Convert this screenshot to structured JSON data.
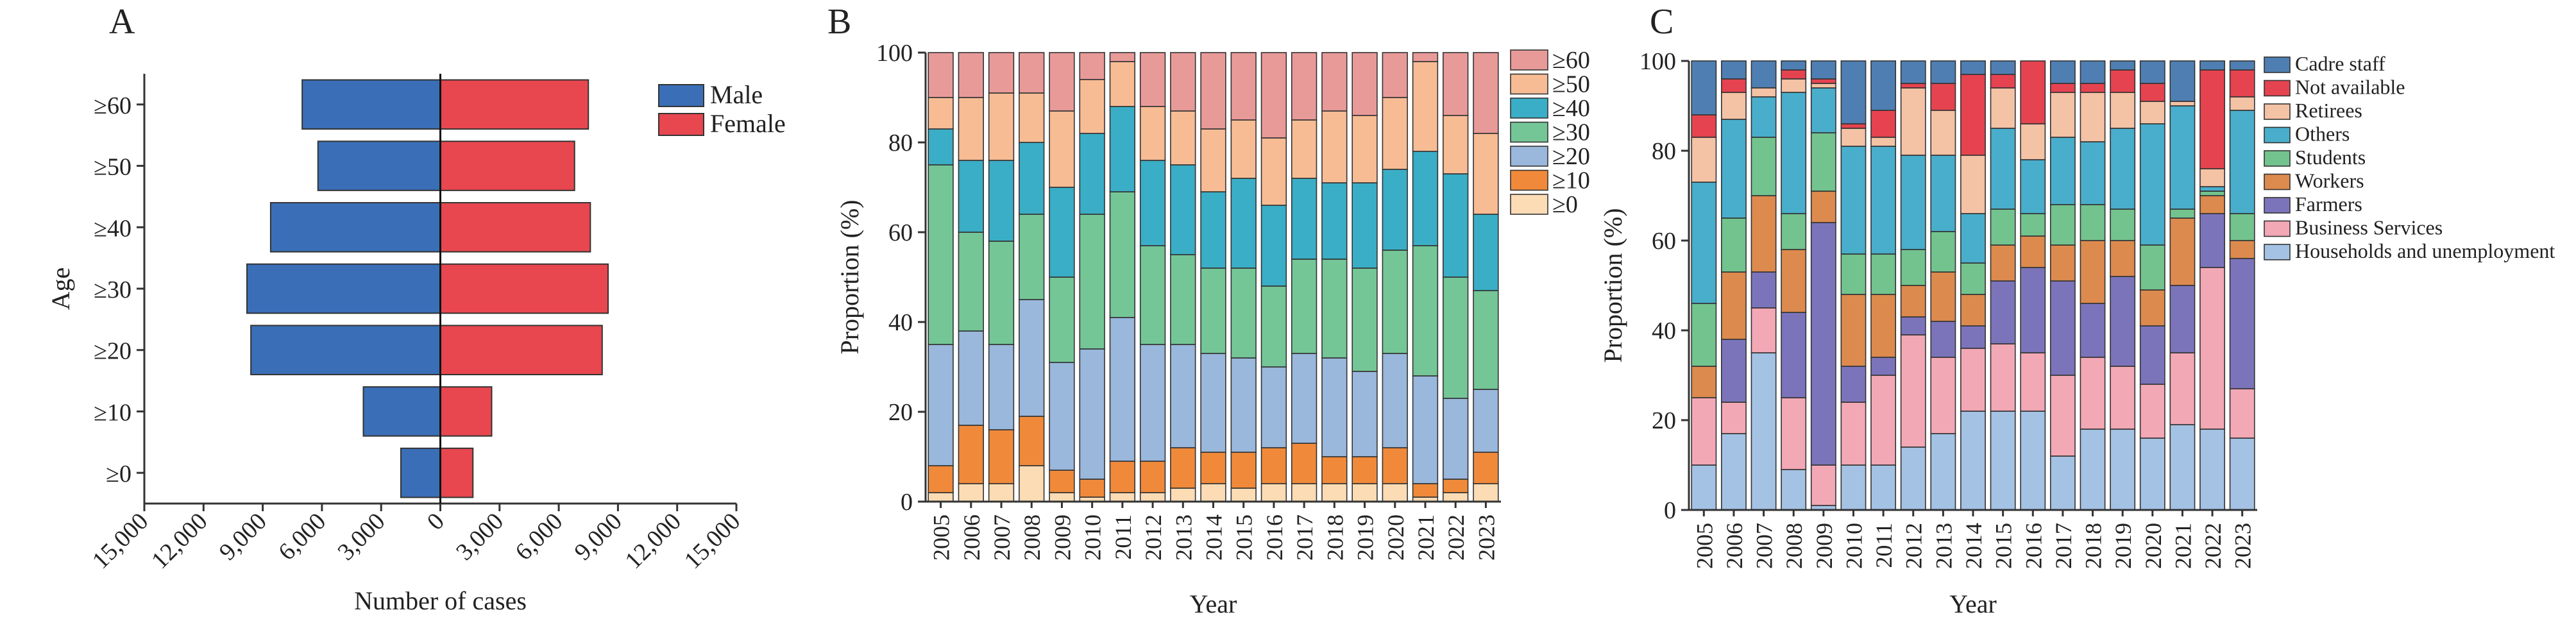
{
  "panels": [
    {
      "letter": "A",
      "chart_data": {
        "type": "bar",
        "orientation": "horizontal-pyramid",
        "categories": [
          "≥0",
          "≥10",
          "≥20",
          "≥30",
          "≥40",
          "≥50",
          "≥60"
        ],
        "series": [
          {
            "name": "Male",
            "values": [
              2000,
              3900,
              9600,
              9800,
              8600,
              6200,
              7000
            ],
            "color": "#3a6fb7"
          },
          {
            "name": "Female",
            "values": [
              1650,
              2600,
              8200,
              8500,
              7600,
              6800,
              7500
            ],
            "color": "#e8474f"
          }
        ],
        "xlabel": "Number of cases",
        "ylabel": "Age",
        "xlim": [
          -15000,
          15000
        ],
        "xticks": [
          -15000,
          -12000,
          -9000,
          -6000,
          -3000,
          0,
          3000,
          6000,
          9000,
          12000,
          15000
        ],
        "xtick_labels": [
          "15,000",
          "12,000",
          "9,000",
          "6,000",
          "3,000",
          "0",
          "3,000",
          "6,000",
          "9,000",
          "12,000",
          "15,000"
        ],
        "grid": false,
        "legend": "top-right"
      }
    },
    {
      "letter": "B",
      "chart_data": {
        "type": "bar",
        "stacked": true,
        "categories": [
          "2005",
          "2006",
          "2007",
          "2008",
          "2009",
          "2010",
          "2011",
          "2012",
          "2013",
          "2014",
          "2015",
          "2016",
          "2017",
          "2018",
          "2019",
          "2020",
          "2021",
          "2022",
          "2023"
        ],
        "series": [
          {
            "name": "≥0",
            "color": "#fbdcb5",
            "values": [
              2,
              4,
              4,
              8,
              2,
              1,
              2,
              2,
              3,
              4,
              3,
              4,
              4,
              4,
              4,
              4,
              1,
              2,
              4
            ]
          },
          {
            "name": "≥10",
            "color": "#f08a3a",
            "values": [
              6,
              13,
              12,
              11,
              5,
              4,
              7,
              7,
              9,
              7,
              8,
              8,
              9,
              6,
              6,
              8,
              3,
              3,
              7
            ]
          },
          {
            "name": "≥20",
            "color": "#9ab7dc",
            "values": [
              27,
              21,
              19,
              26,
              24,
              29,
              32,
              26,
              23,
              22,
              21,
              18,
              20,
              22,
              19,
              21,
              24,
              18,
              14
            ]
          },
          {
            "name": "≥30",
            "color": "#74c697",
            "values": [
              40,
              22,
              23,
              19,
              19,
              30,
              28,
              22,
              20,
              19,
              20,
              18,
              21,
              22,
              23,
              23,
              29,
              27,
              22
            ]
          },
          {
            "name": "≥40",
            "color": "#3aaec6",
            "values": [
              8,
              16,
              18,
              16,
              20,
              18,
              19,
              19,
              20,
              17,
              20,
              18,
              18,
              17,
              19,
              18,
              21,
              23,
              17
            ]
          },
          {
            "name": "≥50",
            "color": "#f7bc94",
            "values": [
              7,
              14,
              15,
              11,
              17,
              12,
              10,
              12,
              12,
              14,
              13,
              15,
              13,
              16,
              15,
              16,
              20,
              13,
              18
            ]
          },
          {
            "name": "≥60",
            "color": "#e89a99",
            "values": [
              10,
              10,
              9,
              9,
              13,
              6,
              2,
              12,
              13,
              17,
              15,
              19,
              15,
              13,
              14,
              10,
              2,
              14,
              18
            ]
          }
        ],
        "xlabel": "Year",
        "ylabel": "Proportion (%)",
        "ylim": [
          0,
          100
        ],
        "yticks": [
          0,
          20,
          40,
          60,
          80,
          100
        ],
        "grid": false,
        "legend": "right"
      }
    },
    {
      "letter": "C",
      "chart_data": {
        "type": "bar",
        "stacked": true,
        "categories": [
          "2005",
          "2006",
          "2007",
          "2008",
          "2009",
          "2010",
          "2011",
          "2012",
          "2013",
          "2014",
          "2015",
          "2016",
          "2017",
          "2018",
          "2019",
          "2020",
          "2021",
          "2022",
          "2023"
        ],
        "series": [
          {
            "name": "Households and unemployment",
            "color": "#a4c2e4",
            "values": [
              10,
              17,
              35,
              9,
              1,
              10,
              10,
              14,
              17,
              22,
              22,
              22,
              12,
              18,
              18,
              16,
              19,
              18,
              16
            ]
          },
          {
            "name": "Business Services",
            "color": "#f3a8b6",
            "values": [
              15,
              7,
              10,
              16,
              9,
              14,
              20,
              25,
              17,
              14,
              15,
              13,
              18,
              16,
              14,
              12,
              16,
              36,
              11
            ]
          },
          {
            "name": "Farmers",
            "color": "#7c74bb",
            "values": [
              0,
              14,
              8,
              19,
              54,
              8,
              4,
              4,
              8,
              5,
              14,
              19,
              21,
              12,
              20,
              13,
              15,
              12,
              29
            ]
          },
          {
            "name": "Workers",
            "color": "#dc8a4e",
            "values": [
              7,
              15,
              17,
              14,
              7,
              16,
              14,
              7,
              11,
              7,
              8,
              7,
              8,
              14,
              8,
              8,
              15,
              4,
              4
            ]
          },
          {
            "name": "Students",
            "color": "#73c38e",
            "values": [
              14,
              12,
              13,
              8,
              13,
              9,
              9,
              8,
              9,
              7,
              8,
              5,
              9,
              8,
              7,
              10,
              2,
              1,
              6
            ]
          },
          {
            "name": "Others",
            "color": "#48aecb",
            "values": [
              27,
              22,
              9,
              27,
              10,
              24,
              24,
              21,
              17,
              11,
              18,
              12,
              15,
              14,
              18,
              27,
              23,
              1,
              23
            ]
          },
          {
            "name": "Retirees",
            "color": "#f4c2a4",
            "values": [
              10,
              6,
              2,
              3,
              1,
              4,
              2,
              15,
              10,
              13,
              9,
              8,
              10,
              11,
              8,
              5,
              1,
              4,
              3
            ]
          },
          {
            "name": "Not available",
            "color": "#e54350",
            "values": [
              5,
              3,
              0,
              2,
              1,
              1,
              6,
              1,
              6,
              18,
              3,
              14,
              2,
              2,
              5,
              4,
              0,
              22,
              6
            ]
          },
          {
            "name": "Cadre staff",
            "color": "#4f7fb2",
            "values": [
              12,
              4,
              6,
              2,
              4,
              14,
              11,
              5,
              5,
              3,
              3,
              0,
              5,
              5,
              2,
              5,
              9,
              2,
              2
            ]
          }
        ],
        "xlabel": "Year",
        "ylabel": "Proportion (%)",
        "ylim": [
          0,
          100
        ],
        "yticks": [
          0,
          20,
          40,
          60,
          80,
          100
        ],
        "grid": false,
        "legend": "right"
      }
    }
  ]
}
